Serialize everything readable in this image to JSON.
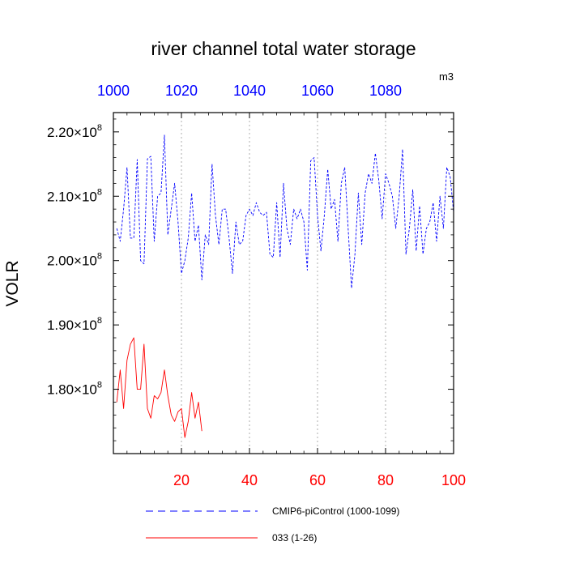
{
  "chart_data": {
    "type": "line",
    "title": "river channel total water storage",
    "ylabel": "VOLR",
    "units_label": "m3",
    "xlim": [
      0,
      100
    ],
    "ylim": [
      170000000,
      223000000
    ],
    "x_ticks": [
      20,
      40,
      60,
      80,
      100
    ],
    "x_tick_labels": [
      "20",
      "40",
      "60",
      "80",
      "100"
    ],
    "x_top_ticks": [
      0,
      20,
      40,
      60,
      80
    ],
    "x_top_tick_labels": [
      "1000",
      "1020",
      "1040",
      "1060",
      "1080"
    ],
    "y_ticks": [
      180000000,
      190000000,
      200000000,
      210000000,
      220000000
    ],
    "y_tick_mantissa": [
      "1.80",
      "1.90",
      "2.00",
      "2.10",
      "2.20"
    ],
    "y_tick_times": "×10",
    "y_tick_exponent": "8",
    "grid": "vertical dashed lines at x = 20, 40, 60, 80",
    "legend_placement": "below plot",
    "series": [
      {
        "name": "CMIP6-piControl (1000-1099)",
        "color": "#0000ff",
        "dash": "dashed",
        "x": [
          1,
          2,
          3,
          4,
          5,
          6,
          7,
          8,
          9,
          10,
          11,
          12,
          13,
          14,
          15,
          16,
          17,
          18,
          19,
          20,
          21,
          22,
          23,
          24,
          25,
          26,
          27,
          28,
          29,
          30,
          31,
          32,
          33,
          34,
          35,
          36,
          37,
          38,
          39,
          40,
          41,
          42,
          43,
          44,
          45,
          46,
          47,
          48,
          49,
          50,
          51,
          52,
          53,
          54,
          55,
          56,
          57,
          58,
          59,
          60,
          61,
          62,
          63,
          64,
          65,
          66,
          67,
          68,
          69,
          70,
          71,
          72,
          73,
          74,
          75,
          76,
          77,
          78,
          79,
          80,
          81,
          82,
          83,
          84,
          85,
          86,
          87,
          88,
          89,
          90,
          91,
          92,
          93,
          94,
          95,
          96,
          97,
          98,
          99,
          100
        ],
        "y": [
          205000000,
          203000000,
          208000000,
          214500000,
          203500000,
          203500000,
          215700000,
          200000000,
          199500000,
          215800000,
          216200000,
          203000000,
          210000000,
          210500000,
          219500000,
          204000000,
          208000000,
          212000000,
          206000000,
          198000000,
          200000000,
          203500000,
          210500000,
          203000000,
          205500000,
          197000000,
          204000000,
          202500000,
          215000000,
          207000000,
          202500000,
          208000000,
          208000000,
          203500000,
          198000000,
          206000000,
          202500000,
          203000000,
          207000000,
          208000000,
          207000000,
          209000000,
          207500000,
          207000000,
          207500000,
          201000000,
          200500000,
          209000000,
          200500000,
          212000000,
          205000000,
          202500000,
          208000000,
          206500000,
          208000000,
          206000000,
          198500000,
          215500000,
          216000000,
          207000000,
          201500000,
          207000000,
          214200000,
          208000000,
          209500000,
          203000000,
          212000000,
          214500000,
          205000000,
          195700000,
          201000000,
          210500000,
          202500000,
          210500000,
          213500000,
          212000000,
          216700000,
          212500000,
          206500000,
          213500000,
          212000000,
          210000000,
          205000000,
          210000000,
          217300000,
          201000000,
          205000000,
          211000000,
          201500000,
          208500000,
          201000000,
          205000000,
          206000000,
          209000000,
          203000000,
          210000000,
          205000000,
          214500000,
          213000000,
          207500000
        ]
      },
      {
        "name": "033 (1-26)",
        "color": "#ff0000",
        "dash": "solid",
        "x": [
          1,
          2,
          3,
          4,
          5,
          6,
          7,
          8,
          9,
          10,
          11,
          12,
          13,
          14,
          15,
          16,
          17,
          18,
          19,
          20,
          21,
          22,
          23,
          24,
          25,
          26
        ],
        "y": [
          178000000,
          183000000,
          177000000,
          184500000,
          187000000,
          188000000,
          180000000,
          180000000,
          187000000,
          177000000,
          175500000,
          179000000,
          178500000,
          179500000,
          183000000,
          179000000,
          176000000,
          175000000,
          176500000,
          177000000,
          172500000,
          175000000,
          179500000,
          175500000,
          178000000,
          173500000
        ]
      }
    ]
  }
}
